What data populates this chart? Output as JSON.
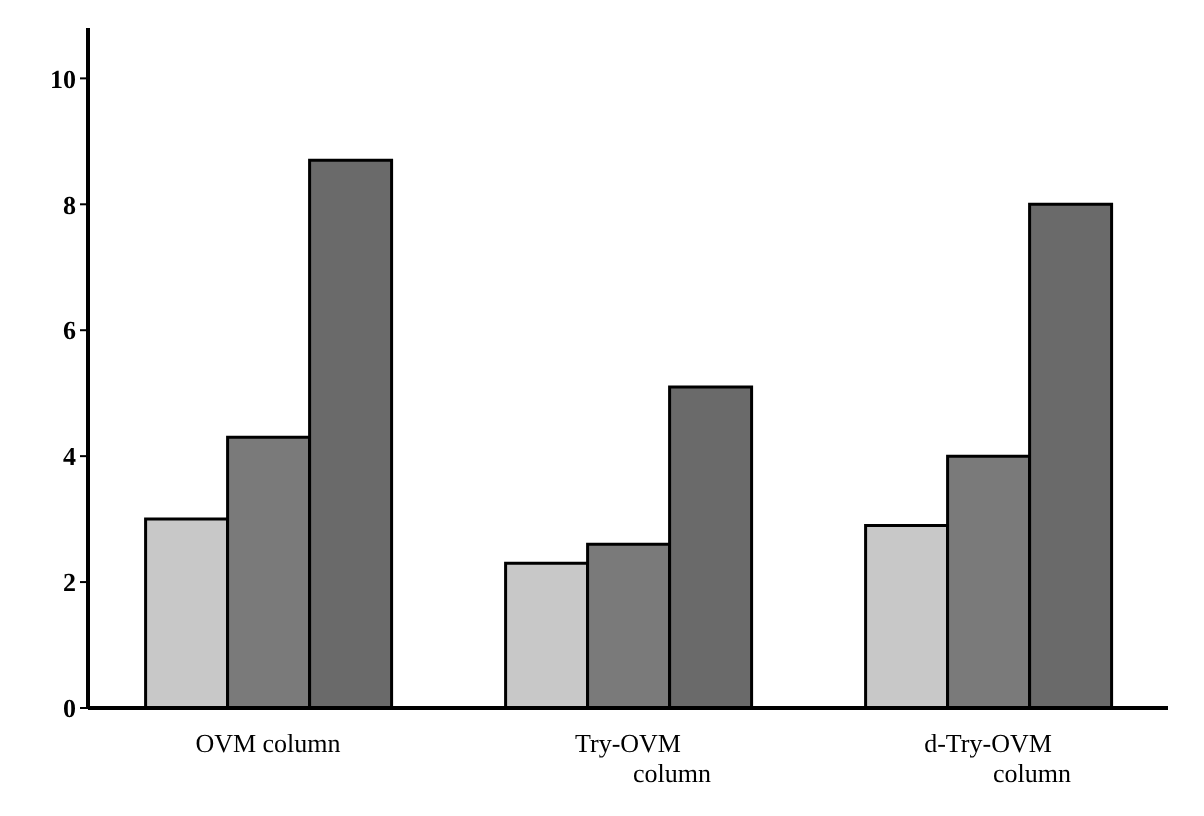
{
  "chart_data": {
    "type": "bar",
    "categories": [
      "OVM column",
      "Try-OVM\ncolumn",
      "d-Try-OVM\ncolumn"
    ],
    "series": [
      {
        "color": "#c8c8c8",
        "values": [
          3.0,
          2.3,
          2.9
        ]
      },
      {
        "color": "#7a7a7a",
        "values": [
          4.3,
          2.6,
          4.0
        ]
      },
      {
        "color": "#6a6a6a",
        "values": [
          8.7,
          5.1,
          8.0
        ]
      }
    ],
    "ylim": [
      0,
      10.8
    ],
    "yticks": [
      0,
      2,
      4,
      6,
      8,
      10
    ],
    "grid": false,
    "legend": false
  }
}
